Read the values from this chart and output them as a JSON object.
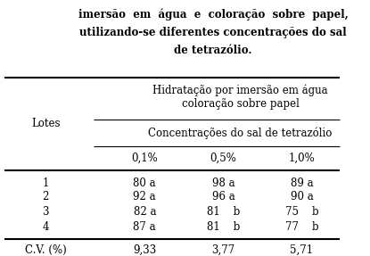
{
  "title_lines": [
    "imersão  em  água  e  coloração  sobre  papel,",
    "utilizando-se diferentes concentrações do sal",
    "de tetrazólio."
  ],
  "header1": "Hidratação por imersão em água\ncoloração sobre papel",
  "header2": "Concentrações do sal de tetrazólio",
  "col_headers": [
    "0,1%",
    "0,5%",
    "1,0%"
  ],
  "row_header": "Lotes",
  "rows": [
    {
      "lot": "1",
      "c1": "80 a",
      "c2": "98 a",
      "c3": "89 a"
    },
    {
      "lot": "2",
      "c1": "92 a",
      "c2": "96 a",
      "c3": "90 a"
    },
    {
      "lot": "3",
      "c1": "82 a",
      "c2": "81    b",
      "c3": "75    b"
    },
    {
      "lot": "4",
      "c1": "87 a",
      "c2": "81    b",
      "c3": "77    b"
    }
  ],
  "cv_row": {
    "label": "C.V. (%)",
    "c1": "9,33",
    "c2": "3,77",
    "c3": "5,71"
  },
  "bg_color": "#ffffff",
  "text_color": "#000000",
  "font_size": 8.5,
  "title_font_size": 8.5
}
